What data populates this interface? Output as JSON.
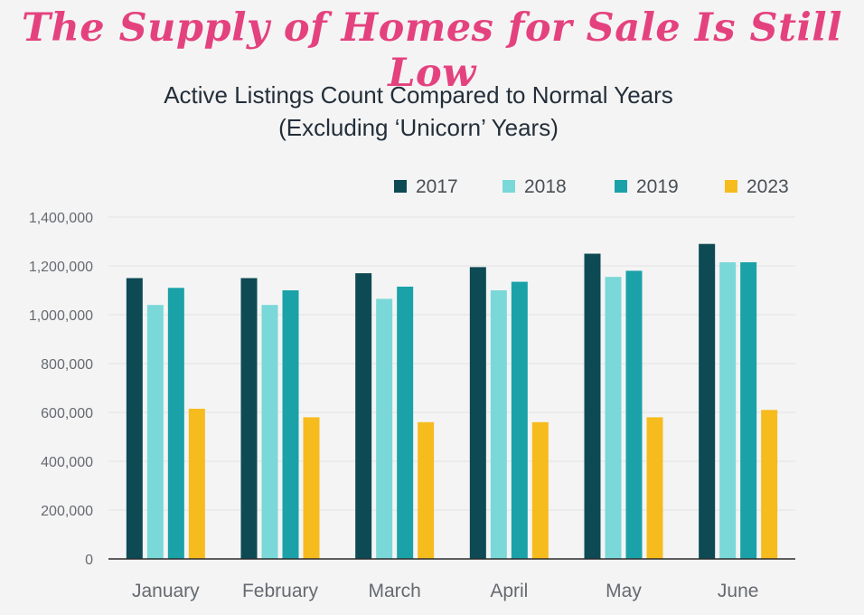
{
  "page": {
    "headline": "The Supply of Homes for Sale Is Still Low",
    "subtitle_line1": "Active Listings Count Compared to Normal Years",
    "subtitle_line2": "(Excluding ‘Unicorn’ Years)"
  },
  "chart_data": {
    "type": "bar",
    "title": "Active Listings Count Compared to Normal Years",
    "subtitle": "(Excluding ‘Unicorn’ Years)",
    "categories": [
      "January",
      "February",
      "March",
      "April",
      "May",
      "June"
    ],
    "series": [
      {
        "name": "2017",
        "color": "#0d4a54",
        "values": [
          1150000,
          1150000,
          1170000,
          1195000,
          1250000,
          1290000
        ]
      },
      {
        "name": "2018",
        "color": "#7ad8d8",
        "values": [
          1040000,
          1040000,
          1065000,
          1100000,
          1155000,
          1215000
        ]
      },
      {
        "name": "2019",
        "color": "#1aa2a8",
        "values": [
          1110000,
          1100000,
          1115000,
          1135000,
          1180000,
          1215000
        ]
      },
      {
        "name": "2023",
        "color": "#f6bb1d",
        "values": [
          615000,
          580000,
          560000,
          560000,
          580000,
          610000
        ]
      }
    ],
    "ylim": [
      0,
      1400000
    ],
    "yticks": [
      0,
      200000,
      400000,
      600000,
      800000,
      1000000,
      1200000,
      1400000
    ],
    "ytick_labels": [
      "0",
      "200,000",
      "400,000",
      "600,000",
      "800,000",
      "1,000,000",
      "1,200,000",
      "1,400,000"
    ],
    "xlabel": "",
    "ylabel": "",
    "grid": true,
    "legend_position": "top-right",
    "gridline_color": "#e2e2e2",
    "axis_line_color": "#2b2b2b"
  }
}
